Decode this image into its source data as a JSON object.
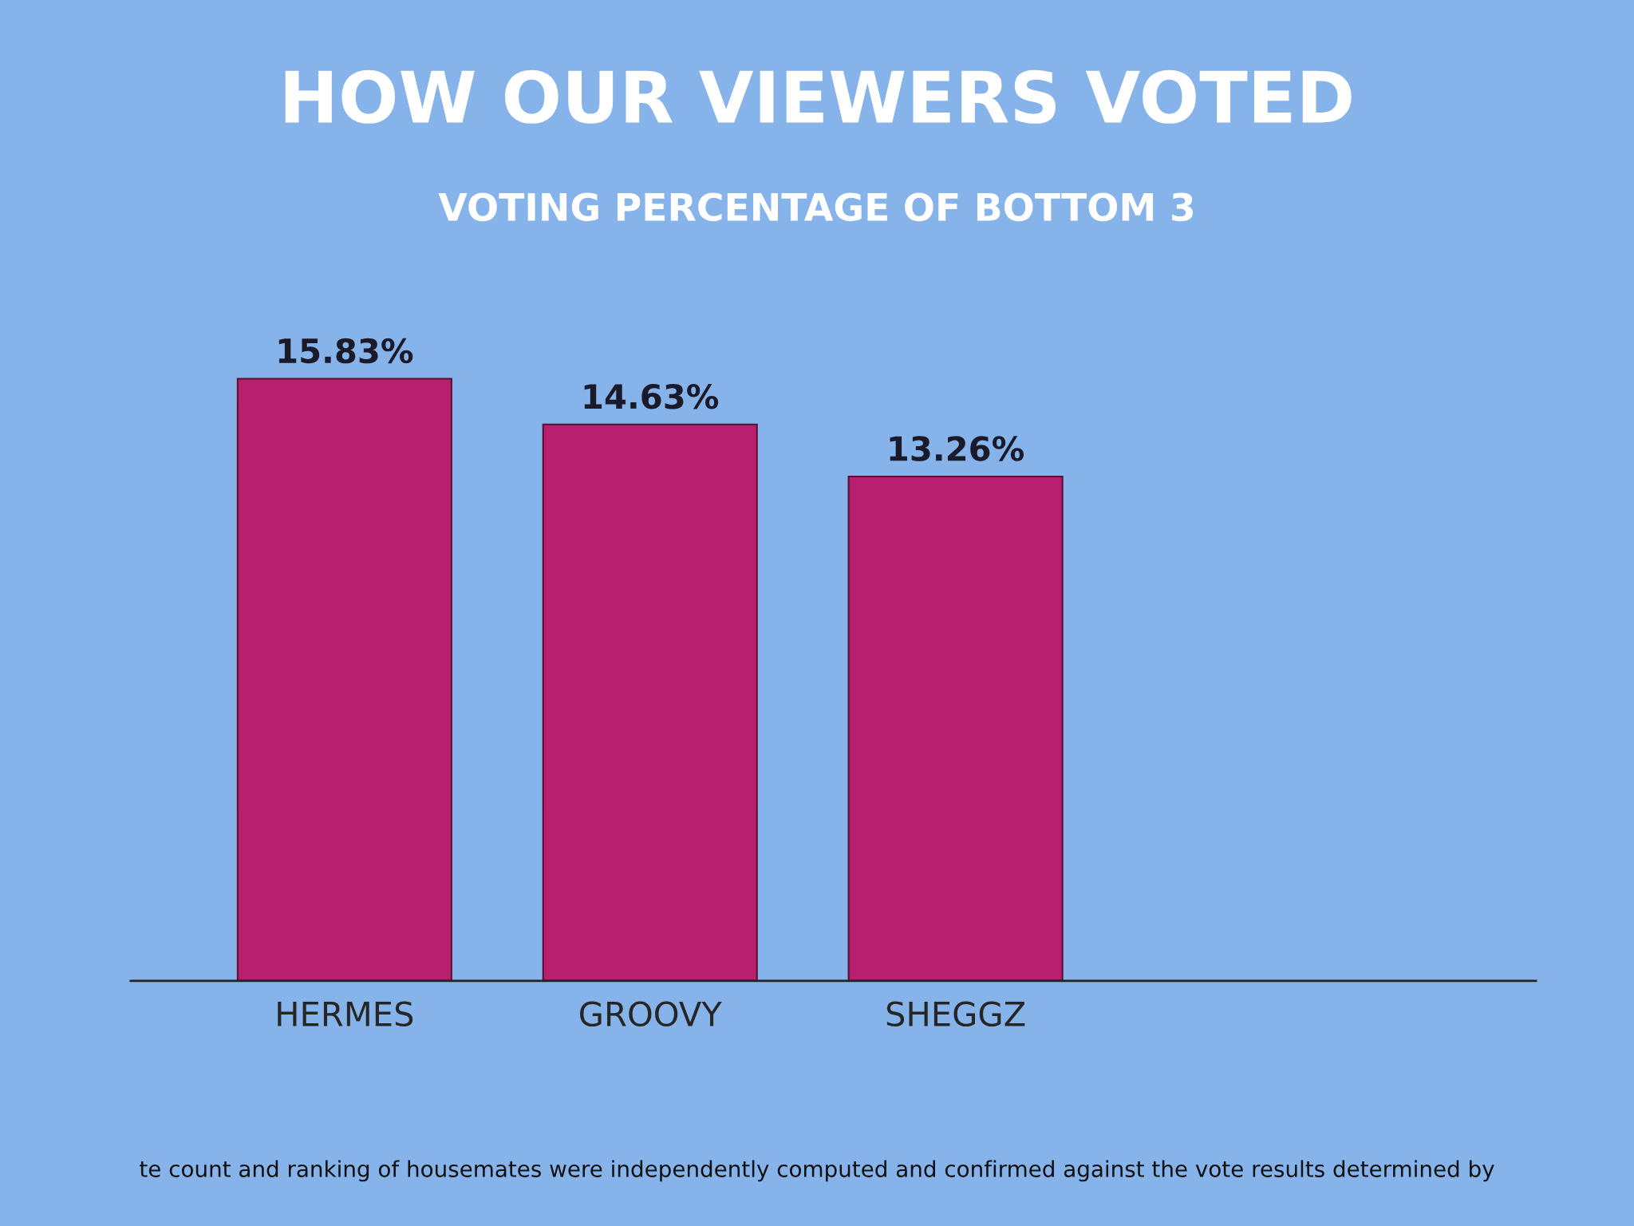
{
  "chart_data": {
    "type": "bar",
    "title": "HOW OUR VIEWERS VOTED",
    "subtitle": "VOTING PERCENTAGE OF BOTTOM 3",
    "categories": [
      "HERMES",
      "GROOVY",
      "SHEGGZ"
    ],
    "values": [
      15.83,
      14.63,
      13.26
    ],
    "value_labels": [
      "15.83%",
      "14.63%",
      "13.26%"
    ],
    "color": "#b81f6e",
    "tick_labels": "x",
    "grid": false,
    "legend": false,
    "annotations": [
      "te count and ranking of housemates were independently computed and confirmed against the vote results determined by"
    ]
  }
}
